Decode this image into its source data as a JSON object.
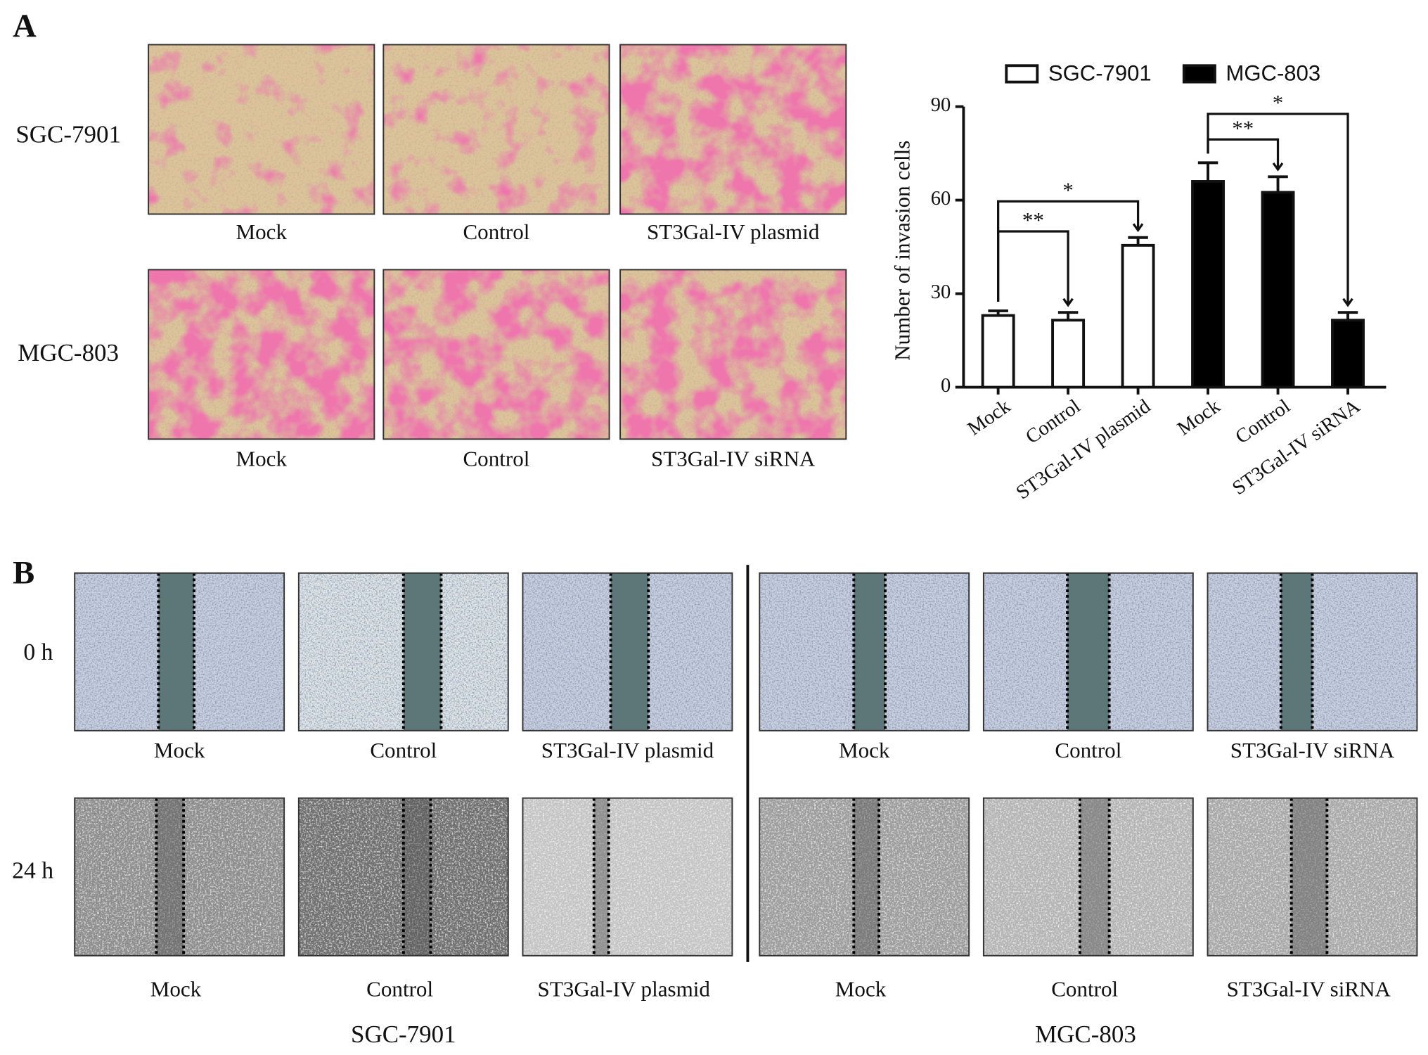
{
  "panel_a": {
    "label": "A",
    "rows": [
      {
        "label": "SGC-7901",
        "captions": [
          "Mock",
          "Control",
          "ST3Gal-IV plasmid"
        ]
      },
      {
        "label": "MGC-803",
        "captions": [
          "Mock",
          "Control",
          "ST3Gal-IV siRNA"
        ]
      }
    ]
  },
  "chart_data": {
    "type": "bar",
    "y_label": "Number of invasion cells",
    "categories": [
      "Mock",
      "Control",
      "ST3Gal-IV plasmid",
      "Mock",
      "Control",
      "ST3Gal-IV siRNA"
    ],
    "series": [
      {
        "name": "SGC-7901",
        "color": "#ffffff",
        "values": [
          23,
          21.5,
          45.5,
          null,
          null,
          null
        ],
        "errors": [
          1.5,
          2.5,
          2.5,
          null,
          null,
          null
        ]
      },
      {
        "name": "MGC-803",
        "color": "#000000",
        "values": [
          null,
          null,
          null,
          66,
          62.5,
          21.5
        ],
        "errors": [
          null,
          null,
          null,
          6,
          5,
          2.5
        ]
      }
    ],
    "ylim": [
      0,
      90
    ],
    "yticks": [
      0,
      30,
      60,
      90
    ],
    "legend": "top",
    "annotations": [
      "**",
      "*",
      "**",
      "*"
    ]
  },
  "panel_b": {
    "label": "B",
    "rows": [
      {
        "label": "0 h",
        "captions": [
          "Mock",
          "Control",
          "ST3Gal-IV plasmid",
          "Mock",
          "Control",
          "ST3Gal-IV siRNA"
        ]
      },
      {
        "label": "24 h",
        "captions": [
          "Mock",
          "Control",
          "ST3Gal-IV plasmid",
          "Mock",
          "Control",
          "ST3Gal-IV siRNA"
        ]
      }
    ],
    "groups": [
      "SGC-7901",
      "MGC-803"
    ]
  }
}
